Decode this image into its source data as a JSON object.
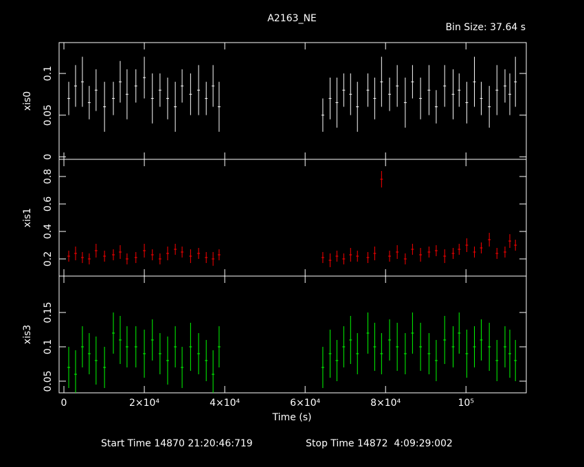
{
  "chart_data": {
    "type": "scatter",
    "title": "A2163_NE",
    "subtitle": "Bin Size: 37.64 s",
    "xlabel": "Time (s)",
    "annotations": [
      "Start Time 14870 21:20:46:719",
      "Stop Time 14872  4:09:29:002"
    ],
    "xlim": [
      -1200,
      115000
    ],
    "xticks": [
      0,
      {
        "value": 20000,
        "label": "2×10⁴"
      },
      {
        "value": 40000,
        "label": "4×10⁴"
      },
      {
        "value": 60000,
        "label": "6×10⁴"
      },
      {
        "value": 80000,
        "label": "8×10⁴"
      },
      {
        "value": 100000,
        "label": "10⁵"
      }
    ],
    "x": [
      1200,
      2900,
      4600,
      6300,
      8000,
      10100,
      12300,
      14000,
      15700,
      17900,
      20000,
      22000,
      23900,
      25800,
      27700,
      29400,
      31500,
      33500,
      35400,
      37100,
      38600,
      64400,
      66200,
      67900,
      69600,
      71300,
      73000,
      75600,
      77300,
      79000,
      81000,
      82900,
      84900,
      86700,
      88700,
      90800,
      92600,
      94700,
      96800,
      98300,
      100200,
      102100,
      103800,
      105800,
      107700,
      109700,
      110900,
      112300
    ],
    "panels": [
      {
        "ylabel": "xis0",
        "color": "#ffffff",
        "ylim": [
          -0.003,
          0.137
        ],
        "yticks": [
          0,
          0.05,
          0.1
        ],
        "values": [
          0.07,
          0.085,
          0.09,
          0.065,
          0.08,
          0.06,
          0.07,
          0.09,
          0.075,
          0.085,
          0.095,
          0.07,
          0.08,
          0.07,
          0.06,
          0.085,
          0.075,
          0.08,
          0.07,
          0.085,
          0.06,
          0.05,
          0.07,
          0.065,
          0.08,
          0.075,
          0.06,
          0.08,
          0.07,
          0.09,
          0.075,
          0.085,
          0.065,
          0.09,
          0.07,
          0.08,
          0.06,
          0.085,
          0.075,
          0.08,
          0.065,
          0.09,
          0.07,
          0.06,
          0.08,
          0.085,
          0.075,
          0.09
        ],
        "errors": [
          0.02,
          0.025,
          0.03,
          0.02,
          0.025,
          0.03,
          0.02,
          0.025,
          0.03,
          0.02,
          0.025,
          0.03,
          0.02,
          0.025,
          0.03,
          0.02,
          0.025,
          0.03,
          0.02,
          0.025,
          0.03,
          0.02,
          0.025,
          0.03,
          0.02,
          0.025,
          0.03,
          0.02,
          0.025,
          0.03,
          0.02,
          0.025,
          0.03,
          0.02,
          0.025,
          0.03,
          0.02,
          0.025,
          0.03,
          0.02,
          0.025,
          0.03,
          0.02,
          0.025,
          0.03,
          0.02,
          0.025,
          0.03
        ]
      },
      {
        "ylabel": "xis1",
        "color": "#ff0000",
        "ylim": [
          0.075,
          0.925
        ],
        "yticks": [
          0.2,
          0.4,
          0.6,
          0.8
        ],
        "values": [
          0.22,
          0.24,
          0.21,
          0.2,
          0.26,
          0.22,
          0.23,
          0.25,
          0.2,
          0.21,
          0.26,
          0.23,
          0.2,
          0.24,
          0.27,
          0.25,
          0.22,
          0.24,
          0.21,
          0.2,
          0.23,
          0.21,
          0.19,
          0.22,
          0.2,
          0.23,
          0.22,
          0.21,
          0.24,
          0.78,
          0.22,
          0.25,
          0.2,
          0.27,
          0.23,
          0.25,
          0.26,
          0.22,
          0.24,
          0.27,
          0.3,
          0.25,
          0.28,
          0.34,
          0.24,
          0.25,
          0.33,
          0.3
        ],
        "errors": [
          0.04,
          0.05,
          0.04,
          0.04,
          0.05,
          0.04,
          0.04,
          0.05,
          0.04,
          0.04,
          0.05,
          0.04,
          0.04,
          0.05,
          0.04,
          0.04,
          0.05,
          0.04,
          0.04,
          0.05,
          0.04,
          0.04,
          0.05,
          0.04,
          0.04,
          0.05,
          0.04,
          0.04,
          0.05,
          0.06,
          0.04,
          0.05,
          0.04,
          0.04,
          0.05,
          0.04,
          0.04,
          0.05,
          0.04,
          0.04,
          0.05,
          0.04,
          0.04,
          0.05,
          0.04,
          0.04,
          0.05,
          0.04
        ]
      },
      {
        "ylabel": "xis3",
        "color": "#00ff00",
        "ylim": [
          0.033,
          0.203
        ],
        "yticks": [
          0.05,
          0.1,
          0.15
        ],
        "values": [
          0.07,
          0.06,
          0.1,
          0.09,
          0.08,
          0.07,
          0.12,
          0.11,
          0.1,
          0.1,
          0.09,
          0.11,
          0.09,
          0.08,
          0.1,
          0.07,
          0.1,
          0.09,
          0.08,
          0.06,
          0.1,
          0.07,
          0.09,
          0.08,
          0.1,
          0.11,
          0.09,
          0.12,
          0.1,
          0.09,
          0.11,
          0.1,
          0.09,
          0.12,
          0.1,
          0.09,
          0.08,
          0.11,
          0.1,
          0.12,
          0.09,
          0.1,
          0.11,
          0.1,
          0.08,
          0.1,
          0.09,
          0.08
        ],
        "errors": [
          0.03,
          0.035,
          0.03,
          0.03,
          0.035,
          0.03,
          0.03,
          0.035,
          0.03,
          0.03,
          0.035,
          0.03,
          0.03,
          0.035,
          0.03,
          0.03,
          0.035,
          0.03,
          0.03,
          0.035,
          0.03,
          0.03,
          0.035,
          0.03,
          0.03,
          0.035,
          0.03,
          0.03,
          0.035,
          0.03,
          0.03,
          0.035,
          0.03,
          0.03,
          0.035,
          0.03,
          0.03,
          0.035,
          0.03,
          0.03,
          0.035,
          0.03,
          0.03,
          0.035,
          0.03,
          0.03,
          0.035,
          0.03
        ]
      }
    ]
  }
}
